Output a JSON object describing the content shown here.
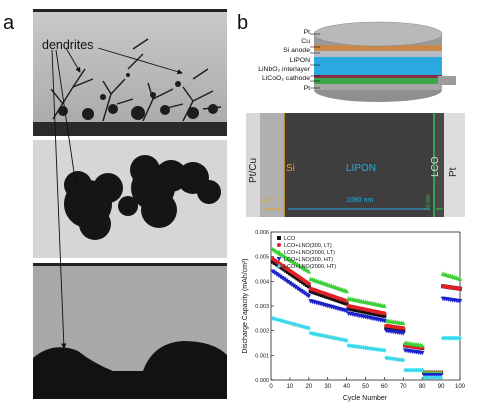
{
  "panel_a": {
    "letter": "a",
    "dendrites_label": "dendrites"
  },
  "panel_b": {
    "letter": "b",
    "layers": [
      "Pt",
      "Cu",
      "Si anode",
      "LIPON",
      "LiNbO₂ interlayer",
      "LiCoO₂ cathode",
      "Pt"
    ],
    "layer_colors": [
      "#9a9a9a",
      "#c7884a",
      "#b7bcc2",
      "#2ba8e0",
      "#8c2a4a",
      "#3da54a",
      "#a5a5a5"
    ],
    "sem": {
      "pt_cu": "Pt/Cu",
      "si": "Si",
      "lipon": "LIPON",
      "lco": "LCO",
      "pt": "Pt",
      "dim_si": "270 nm",
      "dim_lipon": "1080 nm",
      "dim_lco": "70 nm"
    }
  },
  "chart_data": {
    "type": "scatter",
    "xlabel": "Cycle Number",
    "ylabel": "Discharge Capacity (mAh/cm²)",
    "xlim": [
      0,
      100
    ],
    "ylim": [
      0,
      0.006
    ],
    "xticks": [
      "0",
      "10",
      "20",
      "30",
      "40",
      "50",
      "60",
      "70",
      "80",
      "90",
      "100"
    ],
    "yticks": [
      "0.000",
      "0.001",
      "0.002",
      "0.003",
      "0.004",
      "0.005",
      "0.006"
    ],
    "legend_position": "top-left",
    "series": [
      {
        "name": "LCO",
        "color": "#111111",
        "marker": "square",
        "segments": [
          {
            "x0": 1,
            "x1": 20,
            "y0": 0.0048,
            "y1": 0.0038
          },
          {
            "x0": 21,
            "x1": 40,
            "y0": 0.0036,
            "y1": 0.0031
          },
          {
            "x0": 41,
            "x1": 60,
            "y0": 0.0029,
            "y1": 0.0026
          },
          {
            "x0": 61,
            "x1": 70,
            "y0": 0.0021,
            "y1": 0.002
          },
          {
            "x0": 71,
            "x1": 80,
            "y0": 0.0014,
            "y1": 0.0013
          },
          {
            "x0": 81,
            "x1": 90,
            "y0": 0.0003,
            "y1": 0.0003
          },
          {
            "x0": 91,
            "x1": 100,
            "y0": 0.0038,
            "y1": 0.0037
          }
        ]
      },
      {
        "name": "LCO+LNO(300, LT)",
        "color": "#e01f26",
        "marker": "circle",
        "segments": [
          {
            "x0": 1,
            "x1": 20,
            "y0": 0.0049,
            "y1": 0.0039
          },
          {
            "x0": 21,
            "x1": 40,
            "y0": 0.0037,
            "y1": 0.0032
          },
          {
            "x0": 41,
            "x1": 60,
            "y0": 0.003,
            "y1": 0.0027
          },
          {
            "x0": 61,
            "x1": 70,
            "y0": 0.0022,
            "y1": 0.0021
          },
          {
            "x0": 71,
            "x1": 80,
            "y0": 0.0014,
            "y1": 0.0013
          },
          {
            "x0": 81,
            "x1": 90,
            "y0": 0.0003,
            "y1": 0.0003
          },
          {
            "x0": 91,
            "x1": 100,
            "y0": 0.0038,
            "y1": 0.0037
          }
        ]
      },
      {
        "name": "LCO+LNO(2000, LT)",
        "color": "#3fcf3a",
        "marker": "triangle-up",
        "segments": [
          {
            "x0": 1,
            "x1": 20,
            "y0": 0.0053,
            "y1": 0.0044
          },
          {
            "x0": 21,
            "x1": 40,
            "y0": 0.0041,
            "y1": 0.0036
          },
          {
            "x0": 41,
            "x1": 60,
            "y0": 0.0033,
            "y1": 0.003
          },
          {
            "x0": 61,
            "x1": 70,
            "y0": 0.0024,
            "y1": 0.0023
          },
          {
            "x0": 71,
            "x1": 80,
            "y0": 0.0015,
            "y1": 0.0014
          },
          {
            "x0": 81,
            "x1": 90,
            "y0": 0.0003,
            "y1": 0.0003
          },
          {
            "x0": 91,
            "x1": 100,
            "y0": 0.0043,
            "y1": 0.0041
          }
        ]
      },
      {
        "name": "LCO+LNO(300, HT)",
        "color": "#1a22c8",
        "marker": "triangle-down",
        "segments": [
          {
            "x0": 1,
            "x1": 20,
            "y0": 0.0044,
            "y1": 0.0034
          },
          {
            "x0": 21,
            "x1": 40,
            "y0": 0.0032,
            "y1": 0.0028
          },
          {
            "x0": 41,
            "x1": 60,
            "y0": 0.0027,
            "y1": 0.0024
          },
          {
            "x0": 61,
            "x1": 70,
            "y0": 0.002,
            "y1": 0.0019
          },
          {
            "x0": 71,
            "x1": 80,
            "y0": 0.0012,
            "y1": 0.0011
          },
          {
            "x0": 81,
            "x1": 90,
            "y0": 0.0002,
            "y1": 0.0002
          },
          {
            "x0": 91,
            "x1": 100,
            "y0": 0.0033,
            "y1": 0.0032
          }
        ]
      },
      {
        "name": "LCO+LNO(2000, HT)",
        "color": "#3ed8e8",
        "marker": "diamond",
        "segments": [
          {
            "x0": 1,
            "x1": 20,
            "y0": 0.0025,
            "y1": 0.0021
          },
          {
            "x0": 21,
            "x1": 40,
            "y0": 0.0019,
            "y1": 0.0016
          },
          {
            "x0": 41,
            "x1": 60,
            "y0": 0.0014,
            "y1": 0.0012
          },
          {
            "x0": 61,
            "x1": 70,
            "y0": 0.0009,
            "y1": 0.0008
          },
          {
            "x0": 71,
            "x1": 80,
            "y0": 0.0004,
            "y1": 0.0004
          },
          {
            "x0": 81,
            "x1": 90,
            "y0": 0.0001,
            "y1": 0.0001
          },
          {
            "x0": 91,
            "x1": 100,
            "y0": 0.0017,
            "y1": 0.0017
          }
        ]
      }
    ]
  }
}
